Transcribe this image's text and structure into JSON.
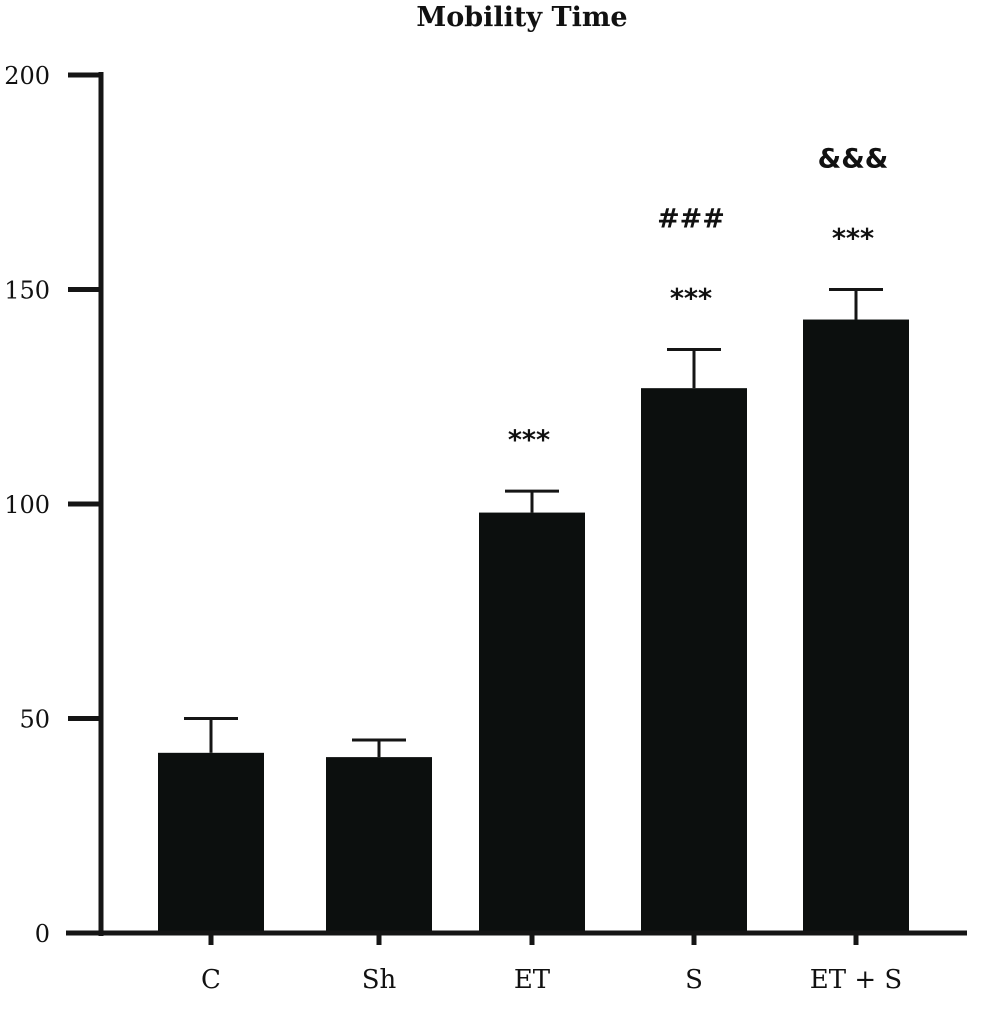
{
  "chart_data": {
    "type": "bar",
    "title": "Mobility Time",
    "xlabel": "",
    "ylabel": "",
    "ylim": [
      0,
      200
    ],
    "yticks": [
      0,
      50,
      100,
      150,
      200
    ],
    "grid": false,
    "categories": [
      "C",
      "Sh",
      "ET",
      "S",
      "ET + S"
    ],
    "values": [
      42,
      41,
      98,
      127,
      143
    ],
    "errors": [
      8,
      4,
      5,
      9,
      7
    ],
    "annotations": [
      {
        "category": "ET",
        "lines": [
          "***"
        ]
      },
      {
        "category": "S",
        "lines": [
          "###",
          "***"
        ]
      },
      {
        "category": "ET + S",
        "lines": [
          "&&&",
          "***"
        ]
      }
    ],
    "colors": {
      "bar": "#0c0f0e",
      "axis": "#151515"
    }
  }
}
